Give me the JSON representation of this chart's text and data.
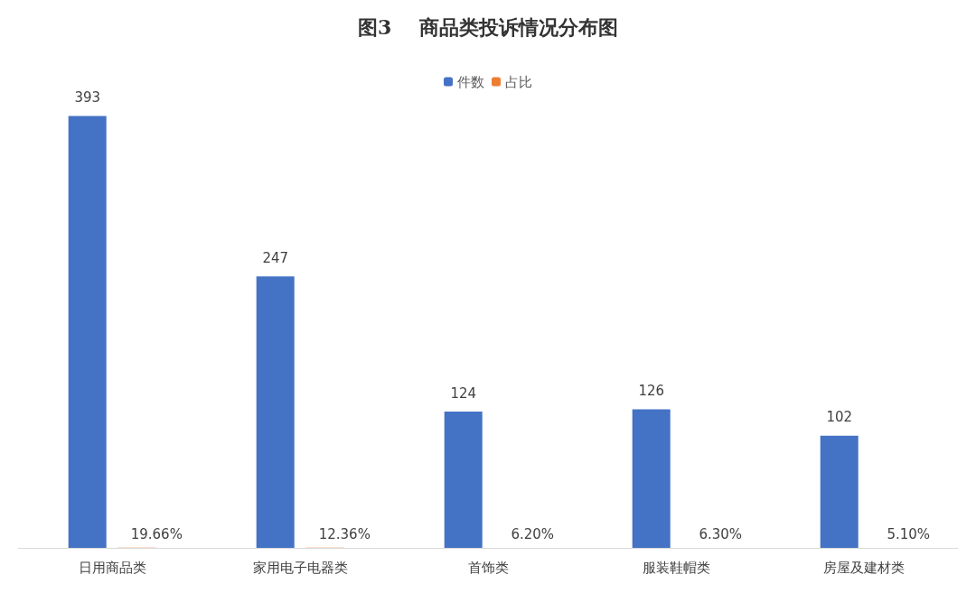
{
  "chart_data": {
    "type": "bar",
    "title": "图3    商品类投诉情况分布图",
    "categories": [
      "日用商品类",
      "家用电子电器类",
      "首饰类",
      "服装鞋帽类",
      "房屋及建材类"
    ],
    "series": [
      {
        "name": "件数",
        "color": "#4472c4",
        "values": [
          393,
          247,
          124,
          126,
          102
        ],
        "value_labels": [
          "393",
          "247",
          "124",
          "126",
          "102"
        ]
      },
      {
        "name": "占比",
        "color": "#ed7d31",
        "values": [
          0.1966,
          0.1236,
          0.062,
          0.063,
          0.051
        ],
        "value_labels": [
          "19.66%",
          "12.36%",
          "6.20%",
          "6.30%",
          "5.10%"
        ]
      }
    ],
    "legend": "top",
    "grid": false
  }
}
